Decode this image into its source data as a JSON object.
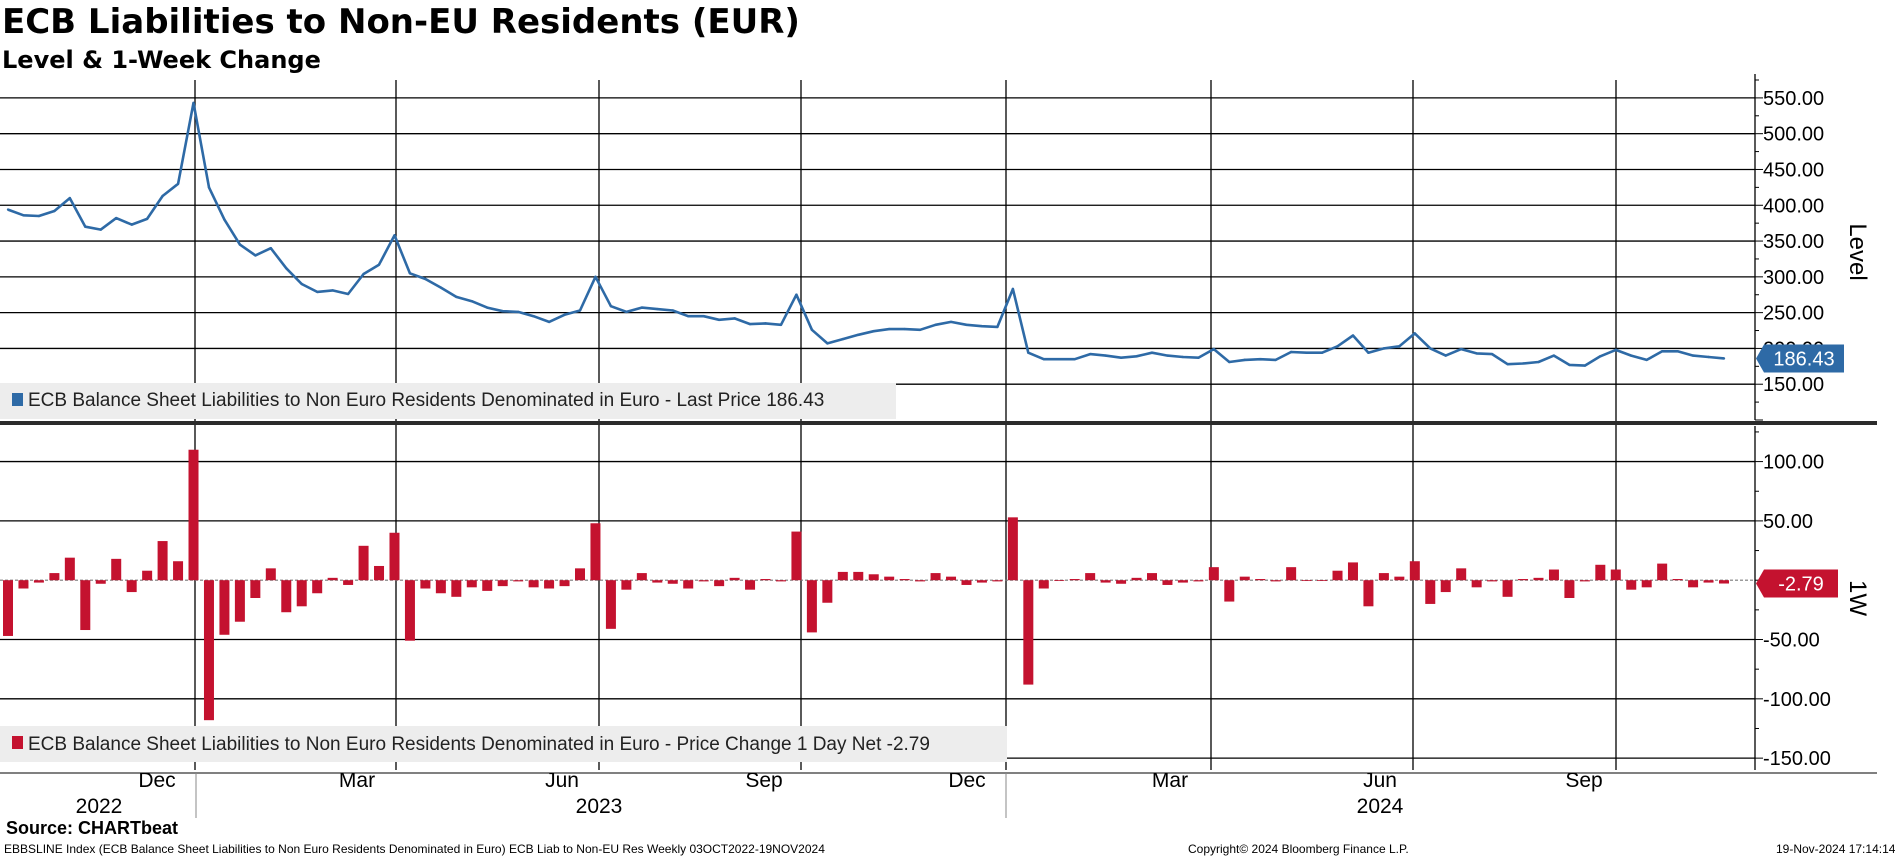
{
  "chart_data": [
    {
      "type": "line",
      "title": "ECB Liabilities to Non-EU Residents (EUR)",
      "subtitle": "Level & 1-Week Change",
      "ylabel": "Level",
      "ylim": [
        100,
        575
      ],
      "yticks": [
        "550.00",
        "500.00",
        "450.00",
        "400.00",
        "350.00",
        "300.00",
        "250.00",
        "200.00",
        "150.00"
      ],
      "ytick_values": [
        550,
        500,
        450,
        400,
        350,
        300,
        250,
        200,
        150
      ],
      "legend": "ECB Balance Sheet Liabilities to Non Euro Residents Denominated in Euro - Last Price 186.43",
      "last_value_label": "186.43",
      "color": "#2e6aa6",
      "values": [
        394,
        386,
        385,
        392,
        410,
        370,
        366,
        382,
        373,
        381,
        413,
        430,
        543,
        425,
        380,
        345,
        330,
        340,
        312,
        290,
        279,
        281,
        276,
        304,
        317,
        358,
        305,
        297,
        285,
        272,
        266,
        257,
        252,
        251,
        245,
        237,
        247,
        253,
        300,
        259,
        251,
        257,
        255,
        253,
        245,
        245,
        240,
        242,
        234,
        235,
        233,
        275,
        226,
        207,
        213,
        219,
        224,
        227,
        227,
        226,
        233,
        237,
        233,
        231,
        230,
        283,
        194,
        185,
        185,
        185,
        192,
        190,
        187,
        189,
        194,
        190,
        188,
        187,
        199,
        181,
        184,
        185,
        184,
        195,
        194,
        194,
        203,
        218,
        194,
        200,
        203,
        221,
        200,
        190,
        199,
        193,
        192,
        178,
        179,
        181,
        190,
        177,
        176,
        189,
        198,
        190,
        184,
        196,
        196,
        190,
        188,
        186
      ]
    },
    {
      "type": "bar",
      "ylabel": "1W",
      "ylim": [
        -160,
        130
      ],
      "yticks": [
        "100.00",
        "50.00",
        "-50.00",
        "-100.00",
        "-150.00"
      ],
      "ytick_values": [
        100,
        50,
        -50,
        -100,
        -150
      ],
      "legend": "ECB Balance Sheet Liabilities to Non Euro Residents Denominated in Euro - Price Change 1 Day Net -2.79",
      "last_value_label": "-2.79",
      "color": "#c4122f",
      "values": [
        -47,
        -7,
        -2,
        6,
        19,
        -42,
        -3,
        18,
        -10,
        8,
        33,
        16,
        110,
        -118,
        -46,
        -35,
        -15,
        10,
        -27,
        -22,
        -11,
        2,
        -4,
        29,
        12,
        40,
        -51,
        -7,
        -11,
        -14,
        -6,
        -9,
        -5,
        -1,
        -6,
        -7,
        -5,
        10,
        48,
        -41,
        -8,
        6,
        -2,
        -3,
        -7,
        -1,
        -5,
        2,
        -8,
        1,
        -1,
        41,
        -44,
        -19,
        7,
        7,
        5,
        3,
        1,
        -1,
        6,
        3,
        -4,
        -2,
        -1,
        53,
        -88,
        -7,
        0,
        1,
        6,
        -2,
        -3,
        2,
        6,
        -4,
        -2,
        -1,
        11,
        -18,
        3,
        1,
        -1,
        11,
        0,
        0,
        8,
        15,
        -22,
        6,
        3,
        16,
        -20,
        -10,
        10,
        -6,
        -1,
        -14,
        1,
        2,
        9,
        -15,
        -1,
        13,
        9,
        -8,
        -6,
        14,
        1,
        -6,
        -2,
        -2.79
      ]
    }
  ],
  "x_axis": {
    "months": [
      "Dec",
      "Mar",
      "Jun",
      "Sep",
      "Dec",
      "Mar",
      "Jun",
      "Sep"
    ],
    "years": [
      "2022",
      "2023",
      "2024"
    ]
  },
  "source": "Source: CHARTbeat",
  "footer": {
    "left": "EBBSLINE Index (ECB Balance Sheet Liabilities to Non Euro Residents Denominated in Euro) ECB Liab to Non-EU Res  Weekly 03OCT2022-19NOV2024",
    "center": "Copyright© 2024 Bloomberg Finance L.P.",
    "right": "19-Nov-2024 17:14:14"
  }
}
